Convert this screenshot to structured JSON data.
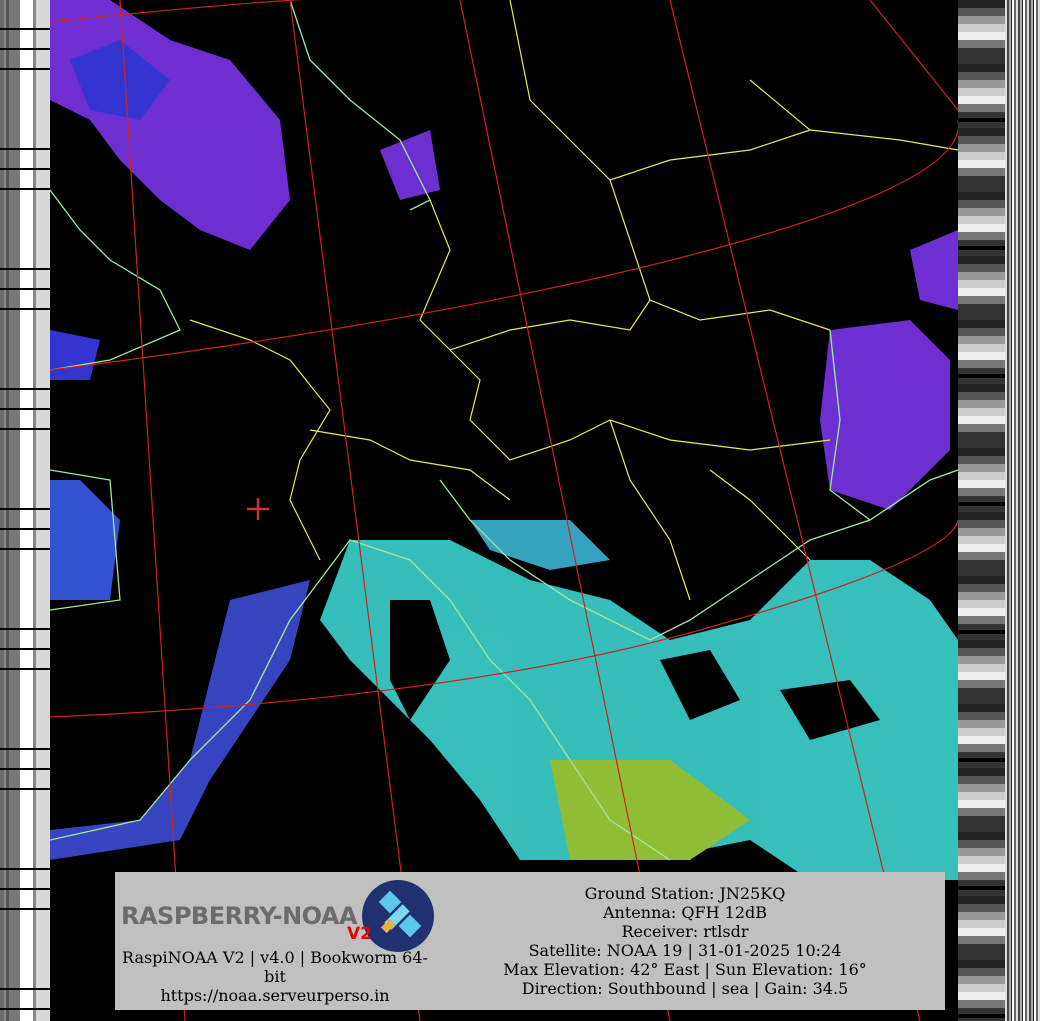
{
  "image": {
    "logo": {
      "text": "RASPBERRY-NOAA",
      "badge": "V2"
    },
    "footer_left": {
      "version_line": "RaspiNOAA V2 | v4.0 | Bookworm 64-bit",
      "url": "https://noaa.serveurperso.in"
    },
    "pass_info": {
      "ground_station": "Ground Station: JN25KQ",
      "antenna": "Antenna: QFH 12dB",
      "receiver": "Receiver: rtlsdr",
      "satellite": "Satellite: NOAA 19 | 31-01-2025 10:24",
      "elevation": "Max Elevation: 42° East | Sun Elevation: 16°",
      "direction": "Direction: Southbound | sea | Gain: 34.5"
    },
    "colors": {
      "background": "#000000",
      "graticule": "#cc2222",
      "borders": "#e8e860",
      "coastline": "#a0e8a0",
      "cloud_high": "#8a3cf0",
      "cloud_sea": "#40e8e0",
      "info_box": "#c0c0c0",
      "ground_station_marker": "#cc3333"
    },
    "marker_icon": "crosshair-icon"
  }
}
